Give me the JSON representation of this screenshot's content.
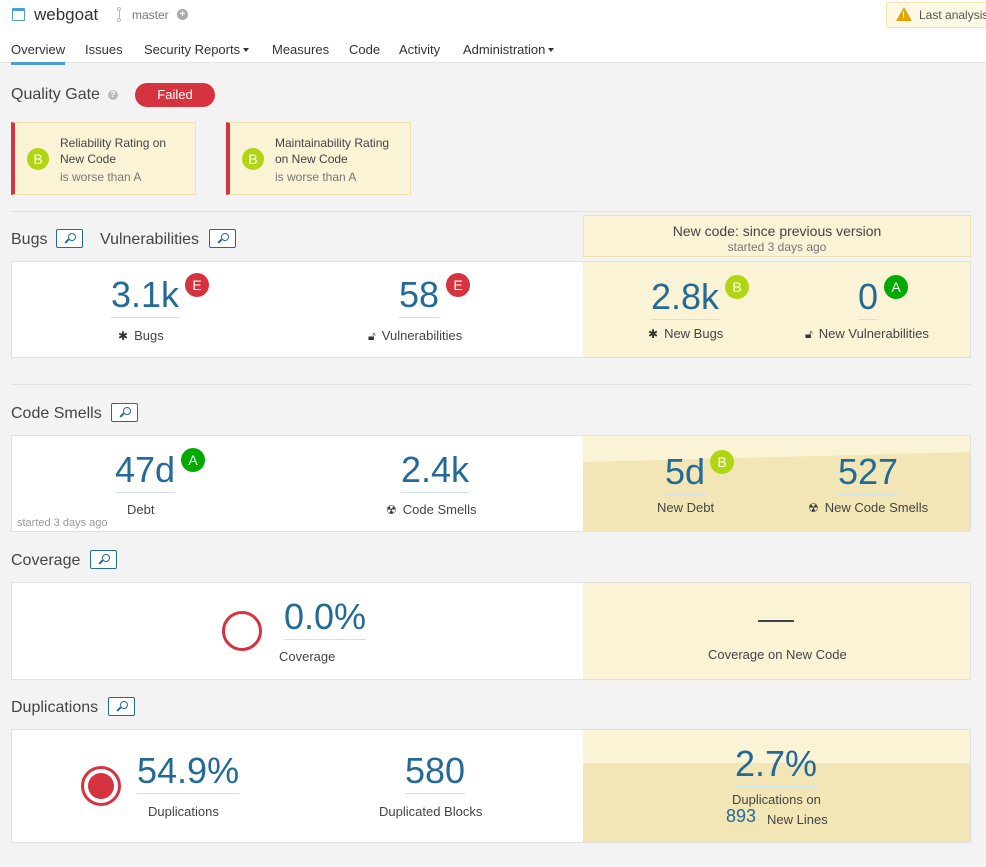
{
  "header": {
    "project_name": "webgoat",
    "branch": "master",
    "branch_action": "+",
    "warning_text": "Last analysis"
  },
  "nav": {
    "items": [
      {
        "label": "Overview",
        "active": true
      },
      {
        "label": "Issues"
      },
      {
        "label": "Security Reports",
        "dropdown": true
      },
      {
        "label": "Measures"
      },
      {
        "label": "Code"
      },
      {
        "label": "Activity"
      },
      {
        "label": "Administration",
        "dropdown": true
      }
    ]
  },
  "quality_gate": {
    "title": "Quality Gate",
    "help": "?",
    "status": "Failed",
    "conditions": [
      {
        "rating": "B",
        "metric": "Reliability Rating on New Code",
        "detail": "is worse than A"
      },
      {
        "rating": "B",
        "metric": "Maintainability Rating on New Code",
        "detail": "is worse than A"
      }
    ]
  },
  "leak_period": {
    "title": "New code: since previous version",
    "started": "started 3 days ago"
  },
  "bugs_vulns": {
    "bugs_title": "Bugs",
    "vulns_title": "Vulnerabilities",
    "bugs": {
      "value": "3.1k",
      "rating": "E",
      "label": "Bugs"
    },
    "vulnerabilities": {
      "value": "58",
      "rating": "E",
      "label": "Vulnerabilities"
    },
    "new_bugs": {
      "value": "2.8k",
      "rating": "B",
      "label": "New Bugs"
    },
    "new_vulnerabilities": {
      "value": "0",
      "rating": "A",
      "label": "New Vulnerabilities"
    }
  },
  "code_smells": {
    "title": "Code Smells",
    "debt": {
      "value": "47d",
      "rating": "A",
      "label": "Debt"
    },
    "smells": {
      "value": "2.4k",
      "label": "Code Smells"
    },
    "started": "started 3 days ago",
    "new_debt": {
      "value": "5d",
      "rating": "B",
      "label": "New Debt"
    },
    "new_smells": {
      "value": "527",
      "label": "New Code Smells"
    }
  },
  "coverage": {
    "title": "Coverage",
    "value": "0.0%",
    "label": "Coverage",
    "new_value": "—",
    "new_label": "Coverage on New Code"
  },
  "duplications": {
    "title": "Duplications",
    "value": "54.9%",
    "label": "Duplications",
    "blocks_value": "580",
    "blocks_label": "Duplicated Blocks",
    "new_value": "2.7%",
    "new_label": "Duplications on",
    "new_lines_value": "893",
    "new_lines_label": "New Lines"
  },
  "colors": {
    "link": "#236a97",
    "failed": "#d4333f",
    "rating_A": "#00aa00",
    "rating_B": "#b0d513",
    "rating_E": "#d4333f",
    "leak_bg": "#fbf3d5"
  },
  "icons": {
    "bug": "bug-icon",
    "vulnerability": "lock-icon",
    "code_smell": "radiation-icon"
  }
}
